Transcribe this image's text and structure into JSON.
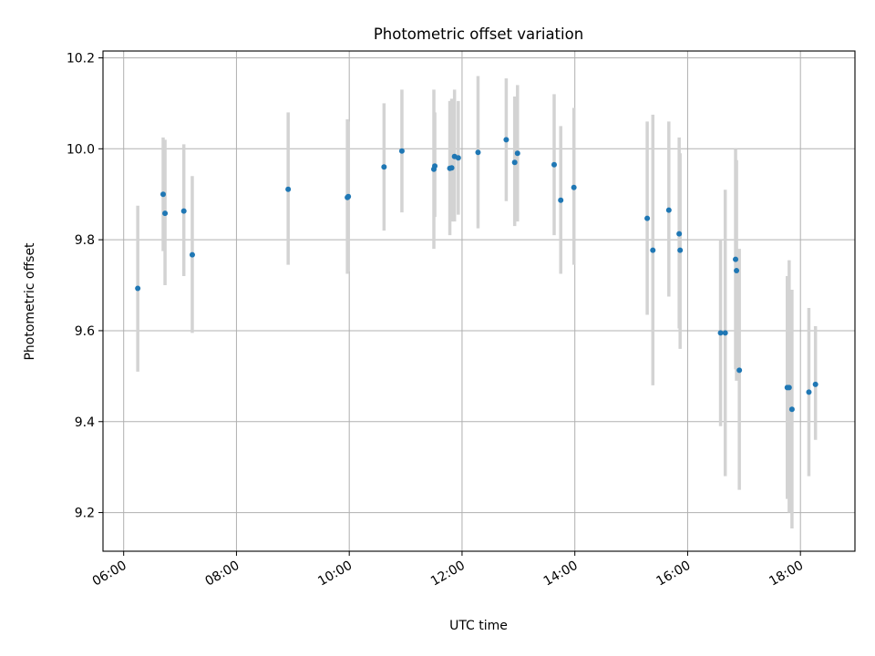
{
  "chart_data": {
    "type": "scatter",
    "title": "Photometric offset variation",
    "xlabel": "UTC time",
    "ylabel": "Photometric offset",
    "x_axis_kind": "time",
    "xlim": [
      "05:38",
      "18:58"
    ],
    "ylim": [
      9.115,
      10.215
    ],
    "grid": true,
    "x_ticks": [
      "06:00",
      "08:00",
      "10:00",
      "12:00",
      "14:00",
      "16:00",
      "18:00"
    ],
    "y_ticks": [
      "9.2",
      "9.4",
      "9.6",
      "9.8",
      "10.0",
      "10.2"
    ],
    "colors": {
      "point": "#1f77b4",
      "errorbar": "#d3d3d3",
      "grid": "#b0b0b0"
    },
    "series": [
      {
        "points": [
          {
            "x": "06:15",
            "y": 9.693,
            "lo": 9.51,
            "hi": 9.875
          },
          {
            "x": "06:42",
            "y": 9.9,
            "lo": 9.775,
            "hi": 10.025
          },
          {
            "x": "06:44",
            "y": 9.858,
            "lo": 9.7,
            "hi": 10.02
          },
          {
            "x": "07:04",
            "y": 9.863,
            "lo": 9.72,
            "hi": 10.01
          },
          {
            "x": "07:13",
            "y": 9.767,
            "lo": 9.595,
            "hi": 9.94
          },
          {
            "x": "08:55",
            "y": 9.911,
            "lo": 9.745,
            "hi": 10.08
          },
          {
            "x": "09:58",
            "y": 9.893,
            "lo": 9.725,
            "hi": 10.065
          },
          {
            "x": "09:59",
            "y": 9.895,
            "lo": 9.73,
            "hi": 10.06
          },
          {
            "x": "10:37",
            "y": 9.96,
            "lo": 9.82,
            "hi": 10.1
          },
          {
            "x": "10:56",
            "y": 9.995,
            "lo": 9.86,
            "hi": 10.13
          },
          {
            "x": "11:30",
            "y": 9.955,
            "lo": 9.78,
            "hi": 10.13
          },
          {
            "x": "11:31",
            "y": 9.962,
            "lo": 9.85,
            "hi": 10.08
          },
          {
            "x": "11:47",
            "y": 9.957,
            "lo": 9.81,
            "hi": 10.105
          },
          {
            "x": "11:49",
            "y": 9.958,
            "lo": 9.84,
            "hi": 10.11
          },
          {
            "x": "11:52",
            "y": 9.983,
            "lo": 9.84,
            "hi": 10.13
          },
          {
            "x": "11:56",
            "y": 9.98,
            "lo": 9.855,
            "hi": 10.105
          },
          {
            "x": "12:17",
            "y": 9.992,
            "lo": 9.825,
            "hi": 10.16
          },
          {
            "x": "12:47",
            "y": 10.02,
            "lo": 9.885,
            "hi": 10.155
          },
          {
            "x": "12:56",
            "y": 9.97,
            "lo": 9.83,
            "hi": 10.115
          },
          {
            "x": "12:59",
            "y": 9.99,
            "lo": 9.84,
            "hi": 10.14
          },
          {
            "x": "13:38",
            "y": 9.965,
            "lo": 9.81,
            "hi": 10.12
          },
          {
            "x": "13:45",
            "y": 9.887,
            "lo": 9.725,
            "hi": 10.05
          },
          {
            "x": "13:59",
            "y": 9.915,
            "lo": 9.745,
            "hi": 10.09
          },
          {
            "x": "15:17",
            "y": 9.847,
            "lo": 9.635,
            "hi": 10.06
          },
          {
            "x": "15:23",
            "y": 9.777,
            "lo": 9.48,
            "hi": 10.075
          },
          {
            "x": "15:40",
            "y": 9.865,
            "lo": 9.675,
            "hi": 10.06
          },
          {
            "x": "15:51",
            "y": 9.813,
            "lo": 9.605,
            "hi": 10.025
          },
          {
            "x": "15:52",
            "y": 9.777,
            "lo": 9.56,
            "hi": 9.99
          },
          {
            "x": "16:35",
            "y": 9.595,
            "lo": 9.39,
            "hi": 9.8
          },
          {
            "x": "16:40",
            "y": 9.595,
            "lo": 9.28,
            "hi": 9.91
          },
          {
            "x": "16:51",
            "y": 9.757,
            "lo": 9.515,
            "hi": 10.0
          },
          {
            "x": "16:52",
            "y": 9.732,
            "lo": 9.49,
            "hi": 9.975
          },
          {
            "x": "16:55",
            "y": 9.513,
            "lo": 9.25,
            "hi": 9.78
          },
          {
            "x": "17:46",
            "y": 9.475,
            "lo": 9.23,
            "hi": 9.72
          },
          {
            "x": "17:48",
            "y": 9.475,
            "lo": 9.2,
            "hi": 9.755
          },
          {
            "x": "17:51",
            "y": 9.427,
            "lo": 9.165,
            "hi": 9.69
          },
          {
            "x": "18:09",
            "y": 9.465,
            "lo": 9.28,
            "hi": 9.65
          },
          {
            "x": "18:16",
            "y": 9.482,
            "lo": 9.36,
            "hi": 9.61
          }
        ]
      }
    ]
  }
}
